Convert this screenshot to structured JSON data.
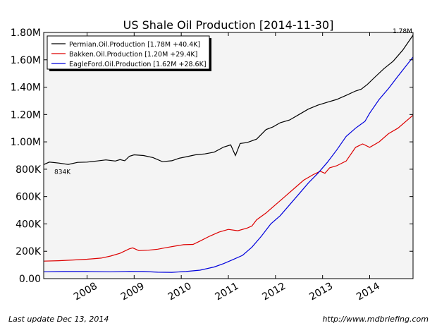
{
  "chart_data": {
    "type": "line",
    "title": "US Shale Oil Production  [2014-11-30]",
    "xlabel": "",
    "ylabel": "",
    "grid": false,
    "legend_position": "top-left",
    "xlim": [
      2007.08,
      2014.92
    ],
    "ylim": [
      0,
      1800000
    ],
    "y_ticks": [
      0,
      200000,
      400000,
      600000,
      800000,
      1000000,
      1200000,
      1400000,
      1600000,
      1800000
    ],
    "y_tick_labels": [
      "0.00",
      "200K",
      "400K",
      "600K",
      "800K",
      "1.00M",
      "1.20M",
      "1.40M",
      "1.60M",
      "1.80M"
    ],
    "x_ticks": [
      2008,
      2009,
      2010,
      2011,
      2012,
      2013,
      2014
    ],
    "x_tick_labels": [
      "2008",
      "2009",
      "2010",
      "2011",
      "2012",
      "2013",
      "2014"
    ],
    "annotations": [
      {
        "text": "834K",
        "x": 2007.08,
        "y": 834000
      },
      {
        "text": "1.78M",
        "x": 2014.92,
        "y": 1780000
      }
    ],
    "series": [
      {
        "name": "Permian.Oil.Production [1.78M +40.4K]",
        "color": "#000000",
        "points": [
          [
            2007.08,
            834000
          ],
          [
            2007.2,
            852000
          ],
          [
            2007.4,
            845000
          ],
          [
            2007.6,
            835000
          ],
          [
            2007.8,
            850000
          ],
          [
            2008.0,
            852000
          ],
          [
            2008.2,
            860000
          ],
          [
            2008.4,
            868000
          ],
          [
            2008.6,
            860000
          ],
          [
            2008.7,
            870000
          ],
          [
            2008.8,
            862000
          ],
          [
            2008.9,
            895000
          ],
          [
            2009.0,
            905000
          ],
          [
            2009.2,
            900000
          ],
          [
            2009.4,
            885000
          ],
          [
            2009.6,
            855000
          ],
          [
            2009.8,
            862000
          ],
          [
            2009.95,
            880000
          ],
          [
            2010.1,
            890000
          ],
          [
            2010.3,
            905000
          ],
          [
            2010.5,
            912000
          ],
          [
            2010.7,
            925000
          ],
          [
            2010.9,
            962000
          ],
          [
            2011.05,
            978000
          ],
          [
            2011.15,
            900000
          ],
          [
            2011.25,
            988000
          ],
          [
            2011.4,
            995000
          ],
          [
            2011.6,
            1020000
          ],
          [
            2011.8,
            1090000
          ],
          [
            2011.95,
            1110000
          ],
          [
            2012.1,
            1140000
          ],
          [
            2012.3,
            1160000
          ],
          [
            2012.5,
            1200000
          ],
          [
            2012.7,
            1240000
          ],
          [
            2012.9,
            1268000
          ],
          [
            2013.1,
            1290000
          ],
          [
            2013.3,
            1310000
          ],
          [
            2013.5,
            1340000
          ],
          [
            2013.7,
            1372000
          ],
          [
            2013.82,
            1385000
          ],
          [
            2013.95,
            1420000
          ],
          [
            2014.1,
            1470000
          ],
          [
            2014.3,
            1535000
          ],
          [
            2014.5,
            1590000
          ],
          [
            2014.7,
            1670000
          ],
          [
            2014.92,
            1780000
          ]
        ]
      },
      {
        "name": "Bakken.Oil.Production [1.20M +29.4K]",
        "color": "#dd0000",
        "points": [
          [
            2007.08,
            128000
          ],
          [
            2007.4,
            131000
          ],
          [
            2007.7,
            136000
          ],
          [
            2008.0,
            142000
          ],
          [
            2008.3,
            150000
          ],
          [
            2008.5,
            165000
          ],
          [
            2008.7,
            185000
          ],
          [
            2008.9,
            218000
          ],
          [
            2008.97,
            225000
          ],
          [
            2009.1,
            205000
          ],
          [
            2009.3,
            208000
          ],
          [
            2009.5,
            215000
          ],
          [
            2009.7,
            228000
          ],
          [
            2009.9,
            240000
          ],
          [
            2010.05,
            248000
          ],
          [
            2010.25,
            250000
          ],
          [
            2010.4,
            275000
          ],
          [
            2010.6,
            310000
          ],
          [
            2010.8,
            340000
          ],
          [
            2011.0,
            360000
          ],
          [
            2011.2,
            350000
          ],
          [
            2011.4,
            370000
          ],
          [
            2011.5,
            385000
          ],
          [
            2011.6,
            430000
          ],
          [
            2011.8,
            480000
          ],
          [
            2012.0,
            540000
          ],
          [
            2012.2,
            600000
          ],
          [
            2012.4,
            660000
          ],
          [
            2012.6,
            720000
          ],
          [
            2012.8,
            760000
          ],
          [
            2012.95,
            785000
          ],
          [
            2013.05,
            770000
          ],
          [
            2013.15,
            810000
          ],
          [
            2013.3,
            825000
          ],
          [
            2013.5,
            860000
          ],
          [
            2013.7,
            960000
          ],
          [
            2013.85,
            985000
          ],
          [
            2014.0,
            960000
          ],
          [
            2014.2,
            1000000
          ],
          [
            2014.4,
            1060000
          ],
          [
            2014.6,
            1100000
          ],
          [
            2014.92,
            1195000
          ]
        ]
      },
      {
        "name": "EagleFord.Oil.Production [1.62M +28.6K]",
        "color": "#0000dd",
        "points": [
          [
            2007.08,
            50000
          ],
          [
            2007.5,
            52000
          ],
          [
            2008.0,
            52000
          ],
          [
            2008.5,
            50000
          ],
          [
            2008.9,
            53000
          ],
          [
            2009.2,
            52000
          ],
          [
            2009.5,
            47000
          ],
          [
            2009.8,
            46000
          ],
          [
            2010.1,
            52000
          ],
          [
            2010.4,
            62000
          ],
          [
            2010.7,
            85000
          ],
          [
            2010.9,
            110000
          ],
          [
            2011.1,
            140000
          ],
          [
            2011.3,
            170000
          ],
          [
            2011.5,
            230000
          ],
          [
            2011.7,
            310000
          ],
          [
            2011.9,
            400000
          ],
          [
            2012.1,
            460000
          ],
          [
            2012.3,
            540000
          ],
          [
            2012.5,
            620000
          ],
          [
            2012.7,
            700000
          ],
          [
            2012.9,
            770000
          ],
          [
            2013.1,
            850000
          ],
          [
            2013.3,
            940000
          ],
          [
            2013.5,
            1040000
          ],
          [
            2013.7,
            1100000
          ],
          [
            2013.9,
            1150000
          ],
          [
            2014.0,
            1210000
          ],
          [
            2014.2,
            1310000
          ],
          [
            2014.4,
            1390000
          ],
          [
            2014.6,
            1480000
          ],
          [
            2014.92,
            1620000
          ]
        ]
      }
    ]
  },
  "footer": {
    "left": "Last update Dec 13, 2014",
    "right": "http://www.mdbriefing.com"
  }
}
